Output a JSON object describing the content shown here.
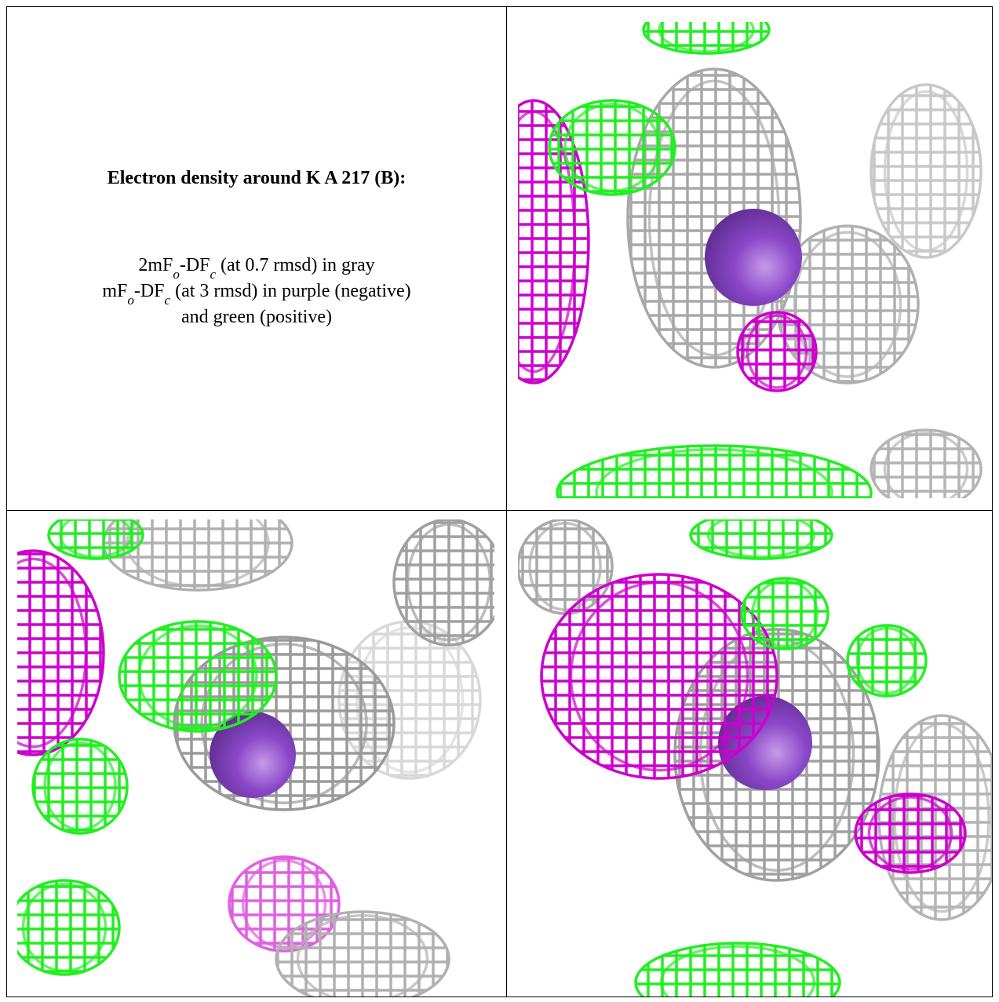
{
  "caption": {
    "title": "Electron density around K A 217 (B):",
    "lines": [
      [
        "2mF",
        "o",
        "-DF",
        "c",
        " (at 0.7 rmsd) in gray"
      ],
      [
        "mF",
        "o",
        "-DF",
        "c",
        " (at 3 rmsd) in purple (negative)"
      ],
      [
        "and green (positive)"
      ]
    ]
  }
}
